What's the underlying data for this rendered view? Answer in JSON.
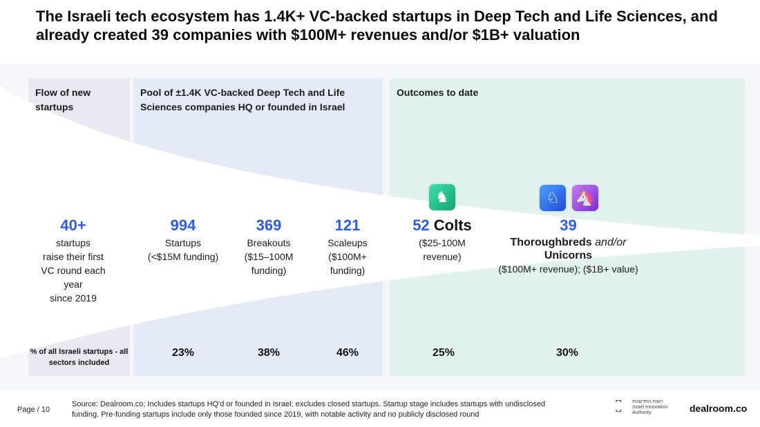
{
  "title": "The Israeli tech ecosystem has 1.4K+ VC-backed startups in Deep Tech and Life Sciences, and already created 39 companies with $100M+ revenues and/or $1B+ valuation",
  "sections": {
    "flow": "Flow of new startups",
    "pool": "Pool of ±1.4K VC-backed Deep Tech and Life Sciences companies HQ or founded in Israel",
    "outcomes": "Outcomes to date"
  },
  "columns": [
    {
      "number": "40+",
      "lines": [
        "startups",
        "raise their first",
        "VC round each",
        "year",
        "since 2019"
      ],
      "pct": ""
    },
    {
      "number": "994",
      "lines": [
        "Startups",
        "(<$15M funding)"
      ],
      "pct": "23%"
    },
    {
      "number": "369",
      "lines": [
        "Breakouts",
        "($15–100M",
        "funding)"
      ],
      "pct": "38%"
    },
    {
      "number": "121",
      "lines": [
        "Scaleups",
        "($100M+",
        "funding)"
      ],
      "pct": "46%"
    }
  ],
  "colts": {
    "number": "52",
    "label": "Colts",
    "desc": "($25-100M revenue)",
    "pct": "25%",
    "icon": "colt-icon"
  },
  "unicorns": {
    "number": "39",
    "label_a": "Thoroughbreds",
    "label_b": "and/or",
    "label_c": "Unicorns",
    "desc": "($100M+ revenue); ($1B+ value)",
    "pct": "30%"
  },
  "pct_label": "% of all Israeli startups - all sectors included",
  "footer": {
    "page": "Page / 10",
    "source": "Source: Dealroom.co; Includes startups HQ'd or founded in Israel; excludes closed startups. Startup stage includes startups with undisclosed funding. Pre-funding startups include only those founded since 2019, with notable activity and no publicly disclosed round",
    "iia_hebrew": "רשות החדשנות",
    "iia": "Israel Innovation Authority",
    "brand": "dealroom.co"
  },
  "colors": {
    "accent": "#2c5ce6",
    "flow": "#ece8f3",
    "pool": "#e5ebf6",
    "outcomes": "#e2f2ef"
  }
}
